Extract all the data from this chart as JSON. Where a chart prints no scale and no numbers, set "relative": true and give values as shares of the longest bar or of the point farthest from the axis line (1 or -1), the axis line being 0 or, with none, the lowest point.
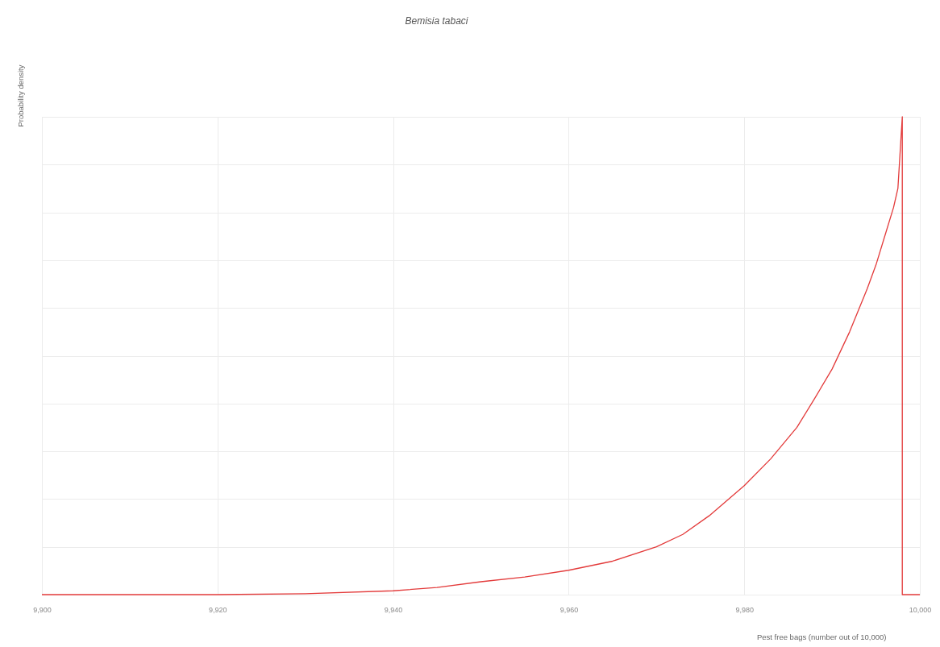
{
  "chart_data": {
    "type": "line",
    "title": "Bemisia tabaci",
    "xlabel": "Pest free bags (number out of 10,000)",
    "ylabel": "Probability density",
    "relative": true,
    "grid": true,
    "tick_labels": "x",
    "line_style": "solid",
    "xlim": [
      9900,
      10000
    ],
    "xticks": [
      {
        "value": 9900,
        "label": "9,900"
      },
      {
        "value": 9920,
        "label": "9,920"
      },
      {
        "value": 9940,
        "label": "9,940"
      },
      {
        "value": 9960,
        "label": "9,960"
      },
      {
        "value": 9980,
        "label": "9,980"
      },
      {
        "value": 10000,
        "label": "10,000"
      }
    ],
    "x": [
      9900,
      9910,
      9920,
      9930,
      9940,
      9945,
      9950,
      9955,
      9960,
      9965,
      9970,
      9973,
      9976,
      9980,
      9983,
      9986,
      9988,
      9990,
      9992,
      9994,
      9995,
      9996,
      9997,
      9997.5,
      9998,
      9998,
      10000
    ],
    "series": [
      {
        "color": "#e33b3b",
        "values": [
          0,
          0,
          0,
          0.002,
          0.008,
          0.015,
          0.027,
          0.037,
          0.051,
          0.07,
          0.1,
          0.126,
          0.165,
          0.228,
          0.284,
          0.35,
          0.41,
          0.472,
          0.55,
          0.64,
          0.69,
          0.75,
          0.81,
          0.85,
          1,
          0,
          0
        ]
      }
    ]
  }
}
